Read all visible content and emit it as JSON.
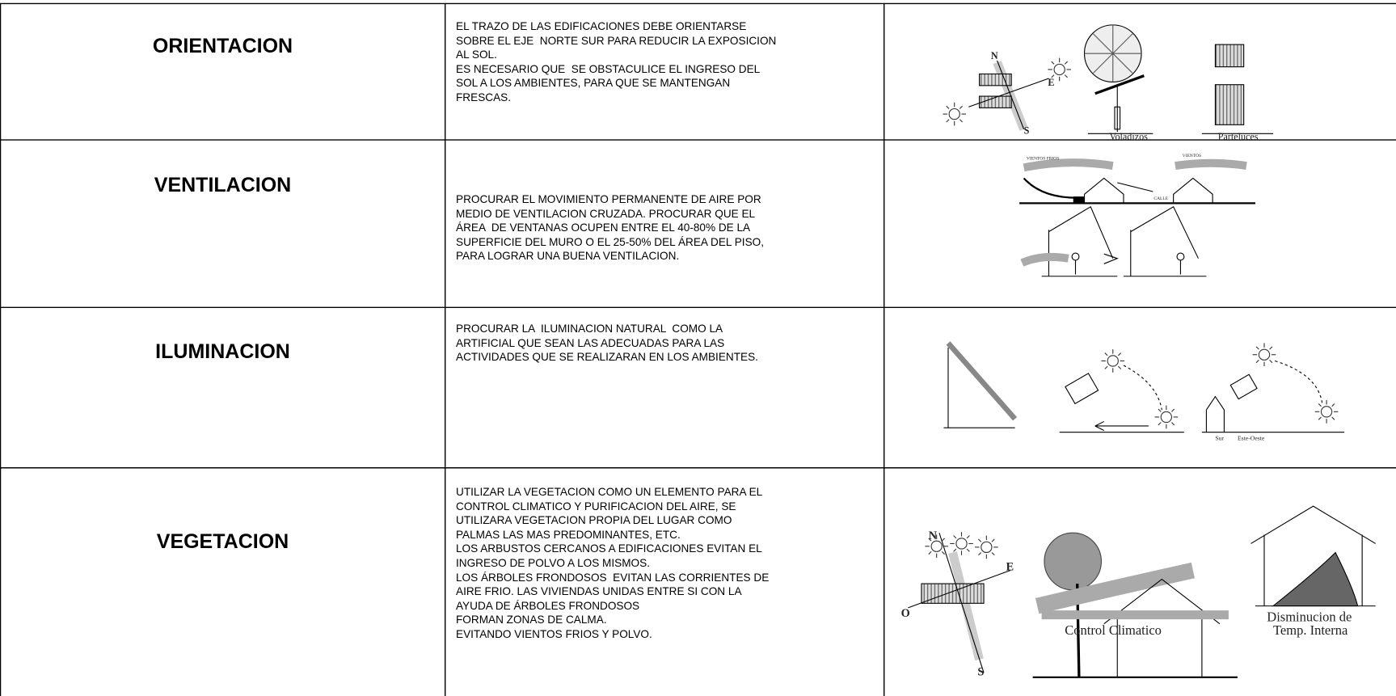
{
  "rows": [
    {
      "title": "ORIENTACION",
      "lines": [
        "EL TRAZO DE LAS EDIFICACIONES DEBE ORIENTARSE",
        "SOBRE EL EJE  NORTE SUR PARA REDUCIR LA EXPOSICION",
        "AL SOL.",
        "ES NECESARIO QUE  SE OBSTACULICE EL INGRESO DEL",
        "SOL A LOS AMBIENTES, PARA QUE SE MANTENGAN",
        "FRESCAS."
      ],
      "figure_labels": [
        "N",
        "E",
        "S",
        "Voladizos",
        "Parteluces"
      ]
    },
    {
      "title": "VENTILACION",
      "lines": [
        "PROCURAR EL MOVIMIENTO PERMANENTE DE AIRE POR",
        "MEDIO DE VENTILACION CRUZADA. PROCURAR QUE EL",
        "ÁREA  DE VENTANAS OCUPEN ENTRE EL 40-80% DE LA",
        "SUPERFICIE DEL MURO O EL 25-50% DEL ÁREA DEL PISO,",
        "PARA LOGRAR UNA BUENA VENTILACION."
      ],
      "figure_labels": [
        "VIENTOS FRIOS",
        "VIENTOS",
        "CALLE"
      ]
    },
    {
      "title": "ILUMINACION",
      "lines": [
        "PROCURAR LA  ILUMINACION NATURAL  COMO LA",
        "ARTIFICIAL QUE SEAN LAS ADECUADAS PARA LAS",
        "ACTIVIDADES QUE SE REALIZARAN EN LOS AMBIENTES."
      ],
      "figure_labels": [
        "Sur",
        "Este-Oeste"
      ]
    },
    {
      "title": "VEGETACION",
      "lines": [
        "UTILIZAR LA VEGETACION COMO UN ELEMENTO PARA EL",
        "CONTROL CLIMATICO Y PURIFICACION DEL AIRE, SE",
        "UTILIZARA VEGETACION PROPIA DEL LUGAR COMO",
        "PALMAS LAS MAS PREDOMINANTES, ETC.",
        "LOS ARBUSTOS CERCANOS A EDIFICACIONES EVITAN EL",
        "INGRESO DE POLVO A LOS MISMOS.",
        "LOS ÁRBOLES FRONDOSOS  EVITAN LAS CORRIENTES DE",
        "AIRE FRIO. LAS VIVIENDAS UNIDAS ENTRE SI CON LA",
        "AYUDA DE ÁRBOLES FRONDOSOS",
        "FORMAN ZONAS DE CALMA.",
        "EVITANDO VIENTOS FRIOS Y POLVO."
      ],
      "figure_labels": [
        "N",
        "E",
        "S",
        "O",
        "Control Climatico",
        "Disminucion de",
        "Temp. Interna"
      ]
    }
  ]
}
